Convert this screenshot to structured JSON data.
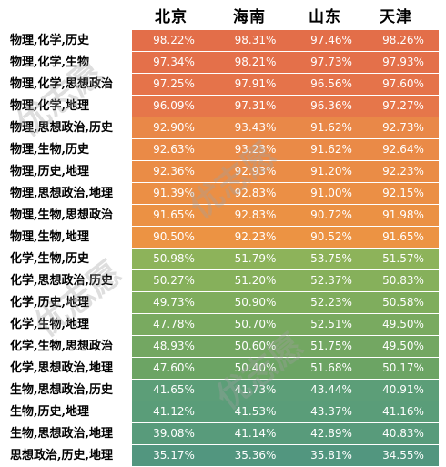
{
  "columns": [
    "北京",
    "海南",
    "山东",
    "天津"
  ],
  "rows": [
    {
      "label": "物理,化学,历史",
      "values": [
        "98.22%",
        "98.31%",
        "97.46%",
        "98.26%"
      ],
      "color": "#e36e49"
    },
    {
      "label": "物理,化学,生物",
      "values": [
        "97.34%",
        "98.21%",
        "97.73%",
        "97.93%"
      ],
      "color": "#e4704a"
    },
    {
      "label": "物理,化学,思想政治",
      "values": [
        "97.25%",
        "97.91%",
        "96.56%",
        "97.60%"
      ],
      "color": "#e5734a"
    },
    {
      "label": "物理,化学,地理",
      "values": [
        "96.09%",
        "97.31%",
        "96.36%",
        "97.27%"
      ],
      "color": "#e6764a"
    },
    {
      "label": "物理,思想政治,历史",
      "values": [
        "92.90%",
        "93.43%",
        "91.62%",
        "92.73%"
      ],
      "color": "#e98848"
    },
    {
      "label": "物理,生物,历史",
      "values": [
        "92.63%",
        "93.23%",
        "91.62%",
        "92.64%"
      ],
      "color": "#ea8a47"
    },
    {
      "label": "物理,历史,地理",
      "values": [
        "92.36%",
        "92.93%",
        "91.20%",
        "92.23%"
      ],
      "color": "#ea8c46"
    },
    {
      "label": "物理,思想政治,地理",
      "values": [
        "91.39%",
        "92.83%",
        "91.00%",
        "92.15%"
      ],
      "color": "#eb8f45"
    },
    {
      "label": "物理,生物,思想政治",
      "values": [
        "91.65%",
        "92.83%",
        "90.72%",
        "91.98%"
      ],
      "color": "#eb9144"
    },
    {
      "label": "物理,生物,地理",
      "values": [
        "90.50%",
        "92.23%",
        "90.52%",
        "91.65%"
      ],
      "color": "#ec9343"
    },
    {
      "label": "化学,生物,历史",
      "values": [
        "50.98%",
        "51.79%",
        "53.75%",
        "51.57%"
      ],
      "color": "#8db35a"
    },
    {
      "label": "化学,思想政治,历史",
      "values": [
        "50.27%",
        "51.20%",
        "52.37%",
        "50.83%"
      ],
      "color": "#86b05b"
    },
    {
      "label": "化学,历史,地理",
      "values": [
        "49.73%",
        "50.90%",
        "52.23%",
        "50.58%"
      ],
      "color": "#7fad5d"
    },
    {
      "label": "化学,生物,地理",
      "values": [
        "47.78%",
        "50.70%",
        "52.51%",
        "49.50%"
      ],
      "color": "#79aa60"
    },
    {
      "label": "化学,生物,思想政治",
      "values": [
        "48.93%",
        "50.60%",
        "51.75%",
        "49.50%"
      ],
      "color": "#73a762"
    },
    {
      "label": "化学,思想政治,地理",
      "values": [
        "47.60%",
        "50.40%",
        "51.68%",
        "50.17%"
      ],
      "color": "#6ca464"
    },
    {
      "label": "生物,思想政治,历史",
      "values": [
        "41.65%",
        "41.73%",
        "43.44%",
        "40.91%"
      ],
      "color": "#5c9e78"
    },
    {
      "label": "生物,历史,地理",
      "values": [
        "41.12%",
        "41.53%",
        "43.37%",
        "41.16%"
      ],
      "color": "#5a9d79"
    },
    {
      "label": "生物,思想政治,地理",
      "values": [
        "39.08%",
        "41.14%",
        "42.89%",
        "40.83%"
      ],
      "color": "#589b7b"
    },
    {
      "label": "思想政治,历史,地理",
      "values": [
        "35.17%",
        "35.36%",
        "35.81%",
        "34.55%"
      ],
      "color": "#52967f"
    }
  ]
}
